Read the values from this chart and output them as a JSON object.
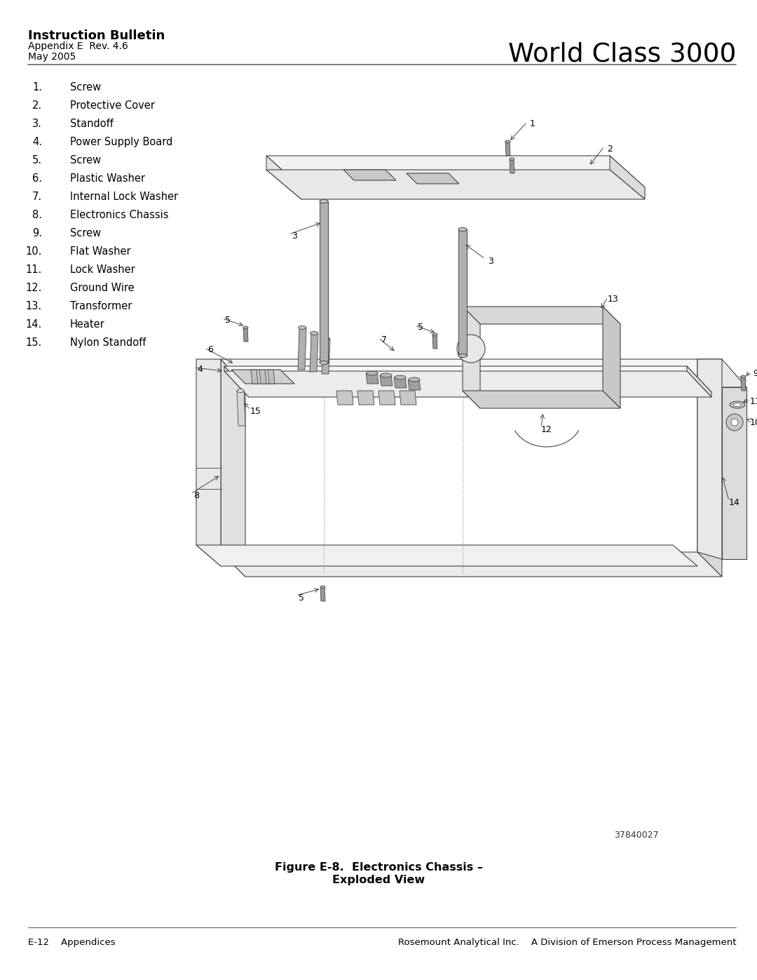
{
  "title_bold": "Instruction Bulletin",
  "title_sub1": "Appendix E  Rev. 4.6",
  "title_sub2": "May 2005",
  "title_right": "World Class 3000",
  "footer_left": "E-12    Appendices",
  "footer_right": "Rosemount Analytical Inc.    A Division of Emerson Process Management",
  "figure_caption_line1": "Figure E-8.  Electronics Chassis –",
  "figure_caption_line2": "Exploded View",
  "part_numbers": [
    1,
    2,
    3,
    4,
    5,
    6,
    7,
    8,
    9,
    10,
    11,
    12,
    13,
    14,
    15
  ],
  "part_names": [
    "Screw",
    "Protective Cover",
    "Standoff",
    "Power Supply Board",
    "Screw",
    "Plastic Washer",
    "Internal Lock Washer",
    "Electronics Chassis",
    "Screw",
    "Flat Washer",
    "Lock Washer",
    "Ground Wire",
    "Transformer",
    "Heater",
    "Nylon Standoff"
  ],
  "bg_color": "#ffffff",
  "text_color": "#000000",
  "diagram_part_number": "37840027",
  "lc": "#444444",
  "lw": 0.8
}
